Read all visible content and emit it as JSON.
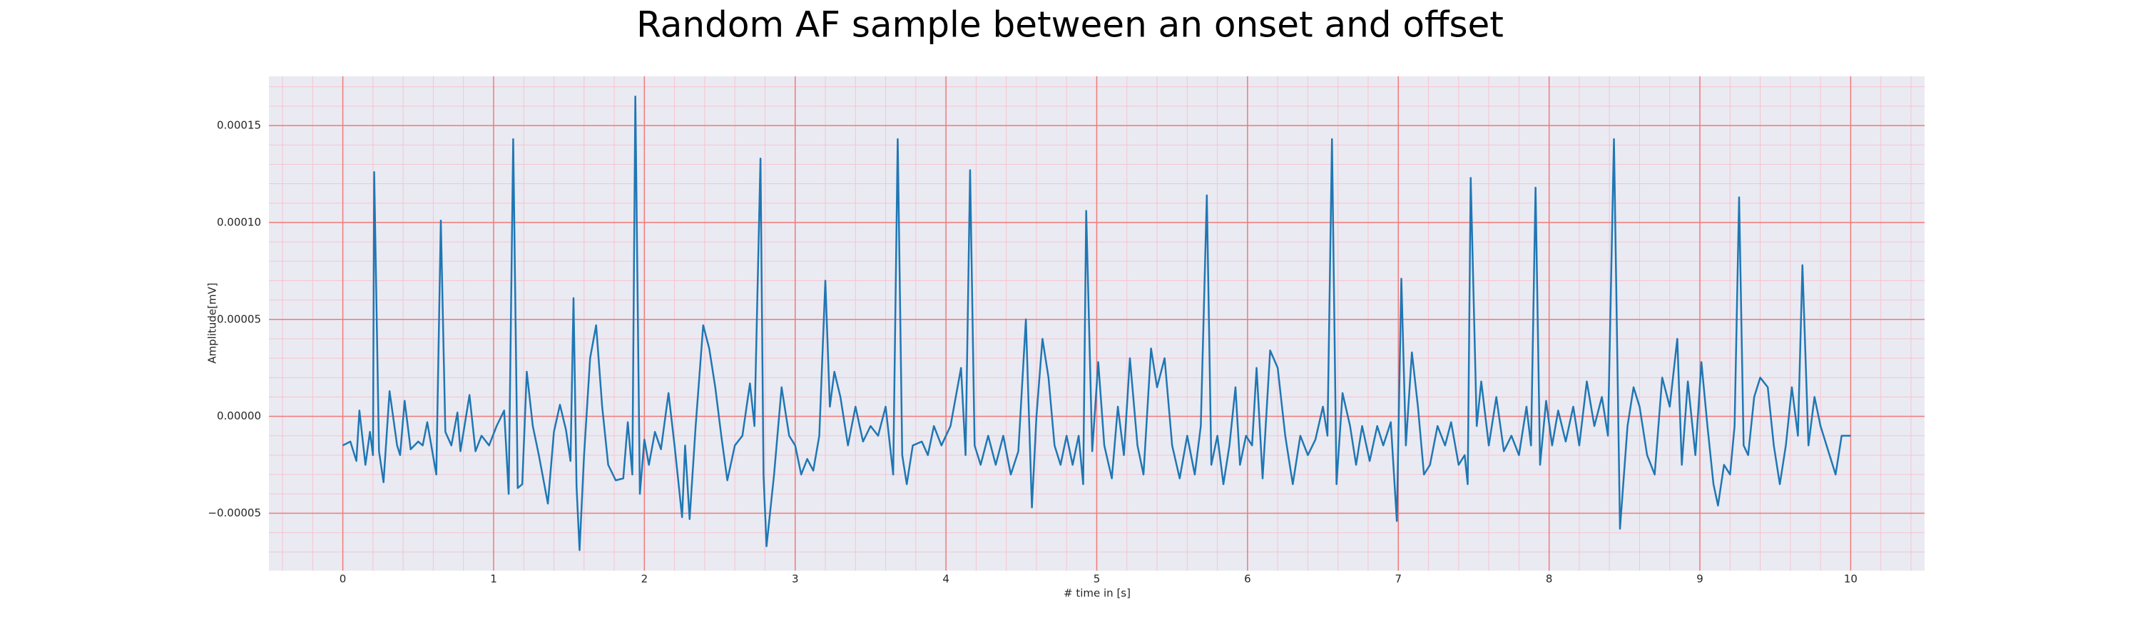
{
  "chart_data": {
    "type": "line",
    "title": "Random AF sample between an onset and offset",
    "xlabel": "# time in [s]",
    "ylabel": "Amplitude[mV]",
    "color": "#1f77b4",
    "grid": true,
    "minor_grid": true,
    "xlim": [
      -0.49,
      10.49
    ],
    "ylim": [
      -7.96e-05,
      0.0001754
    ],
    "xticks": [
      0,
      1,
      2,
      3,
      4,
      5,
      6,
      7,
      8,
      9,
      10
    ],
    "yticks": [
      {
        "value": -5e-05,
        "label": "−0.00005"
      },
      {
        "value": 0,
        "label": "0.00000"
      },
      5e-05,
      {
        "value": 0.0001,
        "label": "0.00010"
      },
      0.00015
    ],
    "x": [
      0,
      0.05,
      0.09,
      0.11,
      0.15,
      0.18,
      0.2,
      0.208,
      0.24,
      0.27,
      0.31,
      0.36,
      0.38,
      0.41,
      0.45,
      0.5,
      0.53,
      0.56,
      0.62,
      0.65,
      0.68,
      0.72,
      0.76,
      0.78,
      0.84,
      0.88,
      0.92,
      0.97,
      1.02,
      1.07,
      1.1,
      1.13,
      1.16,
      1.19,
      1.22,
      1.26,
      1.3,
      1.36,
      1.4,
      1.44,
      1.48,
      1.51,
      1.53,
      1.55,
      1.57,
      1.6,
      1.64,
      1.68,
      1.72,
      1.76,
      1.81,
      1.86,
      1.89,
      1.92,
      1.94,
      1.97,
      2.0,
      2.03,
      2.07,
      2.11,
      2.16,
      2.2,
      2.25,
      2.27,
      2.3,
      2.34,
      2.39,
      2.43,
      2.47,
      2.51,
      2.55,
      2.6,
      2.65,
      2.7,
      2.73,
      2.77,
      2.79,
      2.81,
      2.86,
      2.91,
      2.96,
      3.0,
      3.04,
      3.08,
      3.12,
      3.16,
      3.2,
      3.23,
      3.26,
      3.3,
      3.35,
      3.4,
      3.45,
      3.5,
      3.55,
      3.6,
      3.65,
      3.68,
      3.71,
      3.74,
      3.78,
      3.84,
      3.88,
      3.92,
      3.97,
      4.03,
      4.1,
      4.13,
      4.16,
      4.19,
      4.23,
      4.28,
      4.33,
      4.38,
      4.43,
      4.48,
      4.53,
      4.57,
      4.6,
      4.64,
      4.68,
      4.72,
      4.76,
      4.8,
      4.84,
      4.88,
      4.91,
      4.93,
      4.97,
      5.01,
      5.05,
      5.1,
      5.14,
      5.18,
      5.22,
      5.27,
      5.31,
      5.36,
      5.4,
      5.45,
      5.5,
      5.55,
      5.6,
      5.65,
      5.69,
      5.73,
      5.76,
      5.8,
      5.84,
      5.88,
      5.92,
      5.95,
      5.99,
      6.03,
      6.06,
      6.1,
      6.15,
      6.2,
      6.25,
      6.3,
      6.35,
      6.4,
      6.45,
      6.5,
      6.53,
      6.56,
      6.59,
      6.63,
      6.68,
      6.72,
      6.76,
      6.81,
      6.86,
      6.9,
      6.95,
      6.99,
      7.02,
      7.05,
      7.09,
      7.13,
      7.17,
      7.21,
      7.26,
      7.31,
      7.35,
      7.4,
      7.44,
      7.46,
      7.48,
      7.52,
      7.55,
      7.6,
      7.65,
      7.7,
      7.75,
      7.8,
      7.85,
      7.88,
      7.91,
      7.94,
      7.98,
      8.02,
      8.06,
      8.11,
      8.16,
      8.2,
      8.25,
      8.3,
      8.35,
      8.39,
      8.43,
      8.47,
      8.52,
      8.56,
      8.6,
      8.65,
      8.7,
      8.75,
      8.8,
      8.85,
      8.88,
      8.92,
      8.97,
      9.01,
      9.05,
      9.09,
      9.12,
      9.16,
      9.2,
      9.23,
      9.26,
      9.29,
      9.32,
      9.36,
      9.4,
      9.45,
      9.49,
      9.53,
      9.57,
      9.61,
      9.65,
      9.68,
      9.72,
      9.76,
      9.8,
      9.86,
      9.9,
      9.94,
      10.0
    ],
    "values": [
      -1.5e-05,
      -1.3e-05,
      -2.3e-05,
      3e-06,
      -2.5e-05,
      -8e-06,
      -2e-05,
      0.000126,
      -1.8e-05,
      -3.4e-05,
      1.3e-05,
      -1.5e-05,
      -2e-05,
      8e-06,
      -1.7e-05,
      -1.3e-05,
      -1.5e-05,
      -3e-06,
      -3e-05,
      0.000101,
      -8e-06,
      -1.5e-05,
      2e-06,
      -1.8e-05,
      1.1e-05,
      -1.8e-05,
      -1e-05,
      -1.5e-05,
      -5e-06,
      3e-06,
      -4e-05,
      0.000143,
      -3.7e-05,
      -3.5e-05,
      2.3e-05,
      -5e-06,
      -2e-05,
      -4.5e-05,
      -8e-06,
      6e-06,
      -7e-06,
      -2.3e-05,
      6.1e-05,
      -3.6e-05,
      -6.9e-05,
      -2e-05,
      3e-05,
      4.7e-05,
      5e-06,
      -2.5e-05,
      -3.3e-05,
      -3.2e-05,
      -3e-06,
      -3e-05,
      0.000165,
      -4e-05,
      -1.2e-05,
      -2.5e-05,
      -8e-06,
      -1.7e-05,
      1.2e-05,
      -1.5e-05,
      -5.2e-05,
      -1.5e-05,
      -5.3e-05,
      -5e-06,
      4.7e-05,
      3.5e-05,
      1.5e-05,
      -1e-05,
      -3.3e-05,
      -1.5e-05,
      -1e-05,
      1.7e-05,
      -5e-06,
      0.000133,
      -3e-05,
      -6.7e-05,
      -3e-05,
      1.5e-05,
      -1e-05,
      -1.5e-05,
      -3e-05,
      -2.2e-05,
      -2.8e-05,
      -1e-05,
      7e-05,
      5e-06,
      2.3e-05,
      1e-05,
      -1.5e-05,
      5e-06,
      -1.3e-05,
      -5e-06,
      -1e-05,
      5e-06,
      -3e-05,
      0.000143,
      -2e-05,
      -3.5e-05,
      -1.5e-05,
      -1.3e-05,
      -2e-05,
      -5e-06,
      -1.5e-05,
      -5e-06,
      2.5e-05,
      -2e-05,
      0.000127,
      -1.5e-05,
      -2.5e-05,
      -1e-05,
      -2.5e-05,
      -1e-05,
      -3e-05,
      -1.8e-05,
      5e-05,
      -4.7e-05,
      0,
      4e-05,
      2e-05,
      -1.5e-05,
      -2.5e-05,
      -1e-05,
      -2.5e-05,
      -1e-05,
      -3.5e-05,
      0.000106,
      -1.8e-05,
      2.8e-05,
      -1.5e-05,
      -3.2e-05,
      5e-06,
      -2e-05,
      3e-05,
      -1.5e-05,
      -3e-05,
      3.5e-05,
      1.5e-05,
      3e-05,
      -1.5e-05,
      -3.2e-05,
      -1e-05,
      -3e-05,
      -5e-06,
      0.000114,
      -2.5e-05,
      -1e-05,
      -3.5e-05,
      -1.5e-05,
      1.5e-05,
      -2.5e-05,
      -1e-05,
      -1.5e-05,
      2.5e-05,
      -3.2e-05,
      3.4e-05,
      2.5e-05,
      -1e-05,
      -3.5e-05,
      -1e-05,
      -2e-05,
      -1.2e-05,
      5e-06,
      -1e-05,
      0.000143,
      -3.5e-05,
      1.2e-05,
      -5e-06,
      -2.5e-05,
      -5e-06,
      -2.3e-05,
      -5e-06,
      -1.5e-05,
      -3e-06,
      -5.4e-05,
      7.1e-05,
      -1.5e-05,
      3.3e-05,
      5e-06,
      -3e-05,
      -2.5e-05,
      -5e-06,
      -1.5e-05,
      -3e-06,
      -2.5e-05,
      -2e-05,
      -3.5e-05,
      0.000123,
      -5e-06,
      1.8e-05,
      -1.5e-05,
      1e-05,
      -1.8e-05,
      -1e-05,
      -2e-05,
      5e-06,
      -1.5e-05,
      0.000118,
      -2.5e-05,
      8e-06,
      -1.5e-05,
      3e-06,
      -1.3e-05,
      5e-06,
      -1.5e-05,
      1.8e-05,
      -5e-06,
      1e-05,
      -1e-05,
      0.000143,
      -5.8e-05,
      -5e-06,
      1.5e-05,
      5e-06,
      -2e-05,
      -3e-05,
      2e-05,
      5e-06,
      4e-05,
      -2.5e-05,
      1.8e-05,
      -2e-05,
      2.8e-05,
      -5e-06,
      -3.5e-05,
      -4.6e-05,
      -2.5e-05,
      -3e-05,
      -5e-06,
      0.000113,
      -1.5e-05,
      -2e-05,
      1e-05,
      2e-05,
      1.5e-05,
      -1.5e-05,
      -3.5e-05,
      -1.5e-05,
      1.5e-05,
      -1e-05,
      7.8e-05,
      -1.5e-05,
      1e-05,
      -5e-06,
      -2e-05,
      -3e-05,
      -1e-05,
      -1e-05
    ]
  }
}
